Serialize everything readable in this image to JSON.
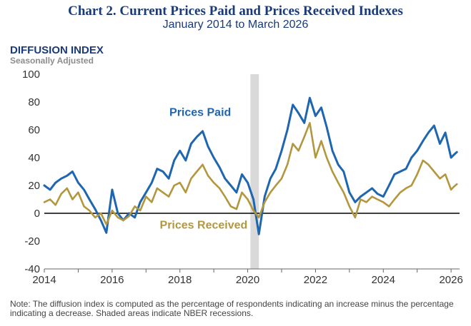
{
  "chart_data": {
    "type": "line",
    "title": "Chart 2. Current Prices Paid and Prices Received Indexes",
    "subtitle": "January 2014 to March 2026",
    "ylabel": "DIFFUSION INDEX",
    "ylabel_sub": "Seasonally Adjusted",
    "ylim": [
      -40,
      100
    ],
    "xlim": [
      2014,
      2026.25
    ],
    "yticks": [
      -40,
      -20,
      0,
      20,
      40,
      60,
      80,
      100
    ],
    "xticks": [
      2014,
      2016,
      2018,
      2020,
      2022,
      2024,
      2026
    ],
    "recession": {
      "start": 2020.08,
      "end": 2020.33
    },
    "series": [
      {
        "name": "Prices Paid",
        "color": "#1f66b0",
        "points": [
          [
            2014.0,
            20
          ],
          [
            2014.17,
            17
          ],
          [
            2014.33,
            22
          ],
          [
            2014.5,
            25
          ],
          [
            2014.67,
            27
          ],
          [
            2014.83,
            30
          ],
          [
            2015.0,
            22
          ],
          [
            2015.17,
            17
          ],
          [
            2015.33,
            10
          ],
          [
            2015.5,
            3
          ],
          [
            2015.67,
            -5
          ],
          [
            2015.83,
            -14
          ],
          [
            2016.0,
            17
          ],
          [
            2016.17,
            0
          ],
          [
            2016.33,
            -5
          ],
          [
            2016.5,
            0
          ],
          [
            2016.67,
            -3
          ],
          [
            2016.83,
            8
          ],
          [
            2017.0,
            15
          ],
          [
            2017.17,
            22
          ],
          [
            2017.33,
            32
          ],
          [
            2017.5,
            30
          ],
          [
            2017.67,
            25
          ],
          [
            2017.83,
            38
          ],
          [
            2018.0,
            45
          ],
          [
            2018.17,
            38
          ],
          [
            2018.33,
            50
          ],
          [
            2018.5,
            55
          ],
          [
            2018.67,
            59
          ],
          [
            2018.83,
            48
          ],
          [
            2019.0,
            40
          ],
          [
            2019.17,
            33
          ],
          [
            2019.33,
            25
          ],
          [
            2019.5,
            20
          ],
          [
            2019.67,
            15
          ],
          [
            2019.83,
            28
          ],
          [
            2020.0,
            22
          ],
          [
            2020.17,
            10
          ],
          [
            2020.33,
            -15
          ],
          [
            2020.5,
            12
          ],
          [
            2020.67,
            25
          ],
          [
            2020.83,
            32
          ],
          [
            2021.0,
            45
          ],
          [
            2021.17,
            60
          ],
          [
            2021.33,
            78
          ],
          [
            2021.5,
            72
          ],
          [
            2021.67,
            65
          ],
          [
            2021.83,
            83
          ],
          [
            2022.0,
            70
          ],
          [
            2022.17,
            76
          ],
          [
            2022.33,
            62
          ],
          [
            2022.5,
            45
          ],
          [
            2022.67,
            35
          ],
          [
            2022.83,
            30
          ],
          [
            2023.0,
            15
          ],
          [
            2023.17,
            8
          ],
          [
            2023.33,
            12
          ],
          [
            2023.5,
            15
          ],
          [
            2023.67,
            18
          ],
          [
            2023.83,
            14
          ],
          [
            2024.0,
            12
          ],
          [
            2024.17,
            20
          ],
          [
            2024.33,
            28
          ],
          [
            2024.5,
            30
          ],
          [
            2024.67,
            32
          ],
          [
            2024.83,
            40
          ],
          [
            2025.0,
            45
          ],
          [
            2025.17,
            52
          ],
          [
            2025.33,
            58
          ],
          [
            2025.5,
            63
          ],
          [
            2025.67,
            50
          ],
          [
            2025.83,
            58
          ],
          [
            2026.0,
            40
          ],
          [
            2026.08,
            42
          ],
          [
            2026.17,
            44
          ]
        ]
      },
      {
        "name": "Prices Received",
        "color": "#b3973e",
        "points": [
          [
            2014.0,
            8
          ],
          [
            2014.17,
            10
          ],
          [
            2014.33,
            6
          ],
          [
            2014.5,
            14
          ],
          [
            2014.67,
            18
          ],
          [
            2014.83,
            10
          ],
          [
            2015.0,
            15
          ],
          [
            2015.17,
            5
          ],
          [
            2015.33,
            2
          ],
          [
            2015.5,
            -3
          ],
          [
            2015.67,
            0
          ],
          [
            2015.83,
            -8
          ],
          [
            2016.0,
            2
          ],
          [
            2016.17,
            -3
          ],
          [
            2016.33,
            -5
          ],
          [
            2016.5,
            -2
          ],
          [
            2016.67,
            5
          ],
          [
            2016.83,
            2
          ],
          [
            2017.0,
            12
          ],
          [
            2017.17,
            8
          ],
          [
            2017.33,
            18
          ],
          [
            2017.5,
            15
          ],
          [
            2017.67,
            12
          ],
          [
            2017.83,
            20
          ],
          [
            2018.0,
            22
          ],
          [
            2018.17,
            15
          ],
          [
            2018.33,
            25
          ],
          [
            2018.5,
            30
          ],
          [
            2018.67,
            35
          ],
          [
            2018.83,
            27
          ],
          [
            2019.0,
            22
          ],
          [
            2019.17,
            18
          ],
          [
            2019.33,
            12
          ],
          [
            2019.5,
            5
          ],
          [
            2019.67,
            3
          ],
          [
            2019.83,
            15
          ],
          [
            2020.0,
            10
          ],
          [
            2020.17,
            2
          ],
          [
            2020.33,
            -3
          ],
          [
            2020.5,
            8
          ],
          [
            2020.67,
            15
          ],
          [
            2020.83,
            20
          ],
          [
            2021.0,
            25
          ],
          [
            2021.17,
            35
          ],
          [
            2021.33,
            50
          ],
          [
            2021.5,
            45
          ],
          [
            2021.67,
            55
          ],
          [
            2021.83,
            65
          ],
          [
            2022.0,
            40
          ],
          [
            2022.17,
            52
          ],
          [
            2022.33,
            40
          ],
          [
            2022.5,
            30
          ],
          [
            2022.67,
            22
          ],
          [
            2022.83,
            15
          ],
          [
            2023.0,
            5
          ],
          [
            2023.17,
            -3
          ],
          [
            2023.33,
            10
          ],
          [
            2023.5,
            8
          ],
          [
            2023.67,
            12
          ],
          [
            2023.83,
            10
          ],
          [
            2024.0,
            8
          ],
          [
            2024.17,
            5
          ],
          [
            2024.33,
            10
          ],
          [
            2024.5,
            15
          ],
          [
            2024.67,
            18
          ],
          [
            2024.83,
            20
          ],
          [
            2025.0,
            28
          ],
          [
            2025.17,
            38
          ],
          [
            2025.33,
            35
          ],
          [
            2025.5,
            30
          ],
          [
            2025.67,
            25
          ],
          [
            2025.83,
            28
          ],
          [
            2026.0,
            17
          ],
          [
            2026.08,
            19
          ],
          [
            2026.17,
            21
          ]
        ]
      }
    ],
    "annotations": [
      {
        "text": "Prices Paid",
        "series": "Prices Paid",
        "x": 2018.6,
        "y": 70
      },
      {
        "text": "Prices Received",
        "series": "Prices Received",
        "x": 2018.7,
        "y": -11
      }
    ],
    "note": "Note: The diffusion index is computed as the percentage of respondents indicating an increase minus the percentage indicating a decrease. Shaded areas indicate NBER recessions."
  }
}
